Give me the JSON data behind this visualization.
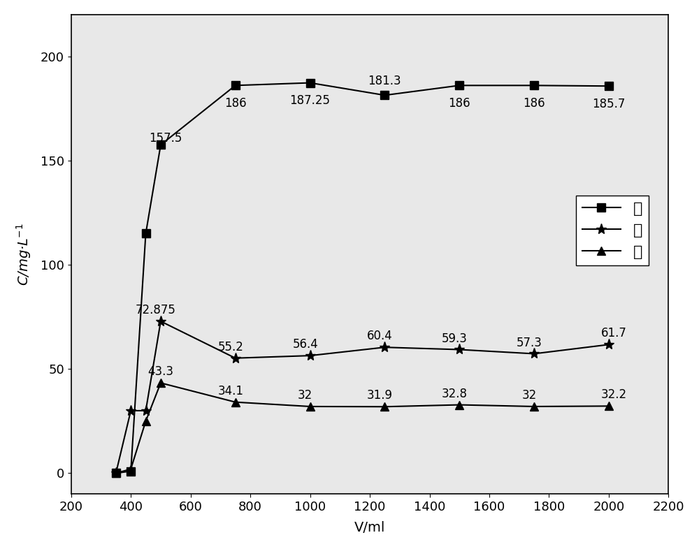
{
  "x_values": [
    350,
    400,
    450,
    500,
    750,
    1000,
    1250,
    1500,
    1750,
    2000
  ],
  "nickel": [
    0,
    1,
    115,
    157.5,
    186,
    187.25,
    181.3,
    186,
    186,
    185.7
  ],
  "calcium": [
    0,
    30,
    30,
    72.875,
    55.2,
    56.4,
    60.4,
    59.3,
    57.3,
    61.7
  ],
  "magnesium": [
    0,
    2,
    25,
    43.3,
    34.1,
    32,
    31.9,
    32.8,
    32,
    32.2
  ],
  "nickel_labels": [
    "",
    "",
    "",
    "157.5",
    "186",
    "187.25",
    "181.3",
    "186",
    "186",
    "185.7"
  ],
  "calcium_labels": [
    "",
    "",
    "",
    "72.875",
    "55.2",
    "56.4",
    "60.4",
    "59.3",
    "57.3",
    "61.7"
  ],
  "magnesium_labels": [
    "",
    "",
    "",
    "43.3",
    "34.1",
    "32",
    "31.9",
    "32.8",
    "32",
    "32.2"
  ],
  "xlabel": "V/ml",
  "ylabel": "C/mg·L⁻¹",
  "xlim": [
    200,
    2200
  ],
  "ylim": [
    -10,
    220
  ],
  "xticks": [
    200,
    400,
    600,
    800,
    1000,
    1200,
    1400,
    1600,
    1800,
    2000,
    2200
  ],
  "yticks": [
    0,
    50,
    100,
    150,
    200
  ],
  "legend_labels": [
    "镁",
    "钓",
    "镁"
  ],
  "nickel_color": "black",
  "calcium_color": "black",
  "magnesium_color": "black",
  "background_color": "#e8e8e8",
  "figure_color": "white"
}
